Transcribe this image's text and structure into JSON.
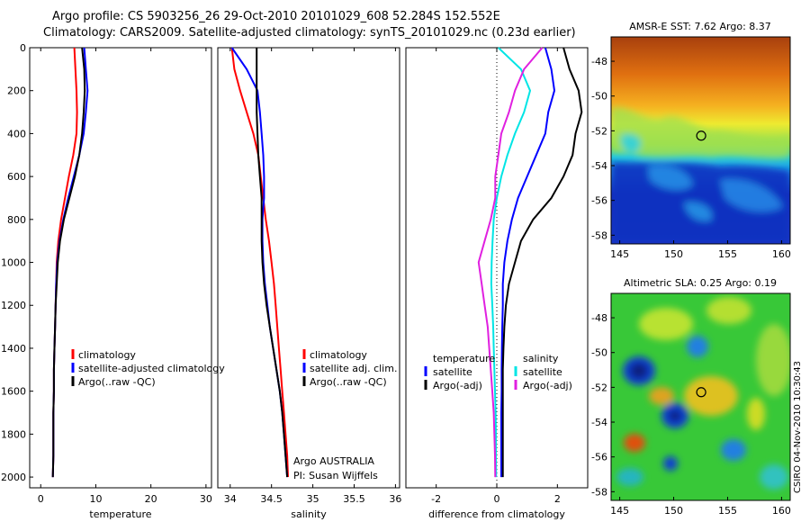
{
  "header": {
    "line1": "Argo profile: CS 5903256_26 29-Oct-2010 20101029_608 52.284S 152.552E",
    "line2": "Climatology: CARS2009. Satellite-adjusted climatology: synTS_20101029.nc (0.23d earlier)"
  },
  "colors": {
    "clim": "#ff0000",
    "sat": "#0000ff",
    "argo": "#000000",
    "sat_diff": "#00e5e5",
    "argo_diff": "#e020e0",
    "marker": "#000000"
  },
  "chart_data": [
    {
      "type": "line",
      "xlabel": "temperature",
      "ylabel": "",
      "xlim": [
        -2,
        31
      ],
      "ylim": [
        0,
        2050
      ],
      "xticks": [
        0,
        10,
        20,
        30
      ],
      "yticks": [
        0,
        200,
        400,
        600,
        800,
        1000,
        1200,
        1400,
        1600,
        1800,
        2000
      ],
      "y": [
        0,
        100,
        200,
        300,
        400,
        500,
        600,
        700,
        800,
        900,
        1000,
        1100,
        1200,
        1300,
        1400,
        1500,
        1600,
        1700,
        1800,
        1900,
        2000
      ],
      "series": [
        {
          "name": "climatology",
          "color_key": "clim",
          "values": [
            6.1,
            6.3,
            6.5,
            6.6,
            6.5,
            5.9,
            5.1,
            4.4,
            3.7,
            3.2,
            2.9,
            2.8,
            2.7,
            2.6,
            2.5,
            2.4,
            2.4,
            2.3,
            2.3,
            2.3,
            2.2
          ]
        },
        {
          "name": "satellite-adjusted climatology",
          "color_key": "sat",
          "values": [
            7.9,
            8.2,
            8.5,
            8.2,
            7.8,
            7.0,
            6.0,
            5.0,
            4.1,
            3.4,
            3.0,
            2.8,
            2.7,
            2.6,
            2.5,
            2.4,
            2.4,
            2.3,
            2.3,
            2.3,
            2.2
          ]
        },
        {
          "name": "Argo(..raw -QC)",
          "color_key": "argo",
          "values": [
            7.5,
            7.9,
            8.0,
            7.8,
            7.5,
            7.0,
            6.2,
            5.2,
            4.2,
            3.5,
            3.1,
            2.9,
            2.7,
            2.6,
            2.5,
            2.4,
            2.4,
            2.3,
            2.3,
            2.3,
            2.2
          ]
        }
      ],
      "legend": [
        "climatology",
        "satellite-adjusted climatology",
        "Argo(..raw -QC)"
      ]
    },
    {
      "type": "line",
      "xlabel": "salinity",
      "ylabel": "",
      "xlim": [
        33.85,
        36.05
      ],
      "ylim": [
        0,
        2050
      ],
      "xticks": [
        34,
        34.5,
        35,
        35.5,
        36
      ],
      "yticks": [],
      "y": [
        0,
        100,
        200,
        300,
        400,
        500,
        600,
        700,
        800,
        900,
        1000,
        1100,
        1200,
        1300,
        1400,
        1500,
        1600,
        1700,
        1800,
        1900,
        2000
      ],
      "series": [
        {
          "name": "climatology",
          "color_key": "clim",
          "values": [
            34.02,
            34.05,
            34.12,
            34.2,
            34.28,
            34.34,
            34.37,
            34.4,
            34.43,
            34.47,
            34.5,
            34.53,
            34.55,
            34.57,
            34.59,
            34.61,
            34.63,
            34.65,
            34.67,
            34.69,
            34.7
          ]
        },
        {
          "name": "satellite adj. clim.",
          "color_key": "sat",
          "values": [
            34.02,
            34.2,
            34.33,
            34.36,
            34.38,
            34.4,
            34.41,
            34.41,
            34.39,
            34.39,
            34.4,
            34.42,
            34.45,
            34.48,
            34.52,
            34.56,
            34.6,
            34.63,
            34.65,
            34.67,
            34.69
          ]
        },
        {
          "name": "Argo(..raw -QC)",
          "color_key": "argo",
          "values": [
            34.32,
            34.32,
            34.32,
            34.32,
            34.33,
            34.34,
            34.36,
            34.38,
            34.38,
            34.38,
            34.39,
            34.41,
            34.44,
            34.48,
            34.52,
            34.56,
            34.6,
            34.63,
            34.65,
            34.67,
            34.69
          ]
        }
      ],
      "legend": [
        "climatology",
        "satellite adj. clim.",
        "Argo(..raw -QC)"
      ],
      "annotation": [
        "Argo AUSTRALIA",
        "PI: Susan Wijffels"
      ]
    },
    {
      "type": "line",
      "xlabel": "difference from climatology",
      "ylabel": "",
      "xlim": [
        -3,
        3
      ],
      "ylim": [
        0,
        2050
      ],
      "xticks": [
        -2,
        0,
        2
      ],
      "yticks": [],
      "y": [
        0,
        100,
        200,
        300,
        400,
        500,
        600,
        700,
        800,
        900,
        1000,
        1100,
        1200,
        1300,
        1400,
        1500,
        1600,
        1700,
        1800,
        1900,
        2000
      ],
      "series": [
        {
          "name": "temperature satellite",
          "color_key": "sat",
          "values": [
            1.6,
            1.8,
            1.9,
            1.7,
            1.6,
            1.3,
            1.0,
            0.7,
            0.5,
            0.35,
            0.25,
            0.2,
            0.2,
            0.18,
            0.17,
            0.16,
            0.16,
            0.15,
            0.15,
            0.15,
            0.15
          ]
        },
        {
          "name": "temperature Argo(-adj)",
          "color_key": "argo",
          "values": [
            2.2,
            2.4,
            2.7,
            2.8,
            2.6,
            2.5,
            2.2,
            1.8,
            1.2,
            0.8,
            0.6,
            0.4,
            0.3,
            0.25,
            0.22,
            0.2,
            0.2,
            0.2,
            0.2,
            0.2,
            0.2
          ]
        },
        {
          "name": "salinity satellite",
          "color_key": "sat_diff",
          "values": [
            0.05,
            0.8,
            1.1,
            0.9,
            0.6,
            0.35,
            0.15,
            0.0,
            -0.1,
            -0.14,
            -0.17,
            -0.18,
            -0.15,
            -0.12,
            -0.1,
            -0.08,
            -0.06,
            -0.04,
            -0.03,
            -0.03,
            -0.02
          ]
        },
        {
          "name": "salinity Argo(-adj)",
          "color_key": "argo_diff",
          "values": [
            1.5,
            0.9,
            0.6,
            0.4,
            0.15,
            0.05,
            -0.05,
            -0.05,
            -0.2,
            -0.4,
            -0.6,
            -0.5,
            -0.4,
            -0.3,
            -0.25,
            -0.2,
            -0.15,
            -0.1,
            -0.08,
            -0.06,
            -0.05
          ]
        }
      ],
      "legend_headers": [
        "temperature",
        "salinity"
      ],
      "legend": [
        "satellite",
        "Argo(-adj)",
        "satellite",
        "Argo(-adj)"
      ]
    },
    {
      "type": "heatmap",
      "title": "AMSR-E SST: 7.62 Argo: 8.37",
      "xlim": [
        144.2,
        160.8
      ],
      "ylim": [
        -58.5,
        -46.6
      ],
      "xticks": [
        145,
        150,
        155,
        160
      ],
      "yticks": [
        -48,
        -50,
        -52,
        -54,
        -56,
        -58
      ],
      "marker": {
        "lon": 152.55,
        "lat": -52.28
      }
    },
    {
      "type": "heatmap",
      "title": "Altimetric SLA: 0.25 Argo: 0.19",
      "xlim": [
        144.2,
        160.8
      ],
      "ylim": [
        -58.5,
        -46.6
      ],
      "xticks": [
        145,
        150,
        155,
        160
      ],
      "yticks": [
        -48,
        -50,
        -52,
        -54,
        -56,
        -58
      ],
      "marker": {
        "lon": 152.55,
        "lat": -52.28
      }
    }
  ],
  "footer": "CSIRO 04-Nov-2010 10:30:43"
}
